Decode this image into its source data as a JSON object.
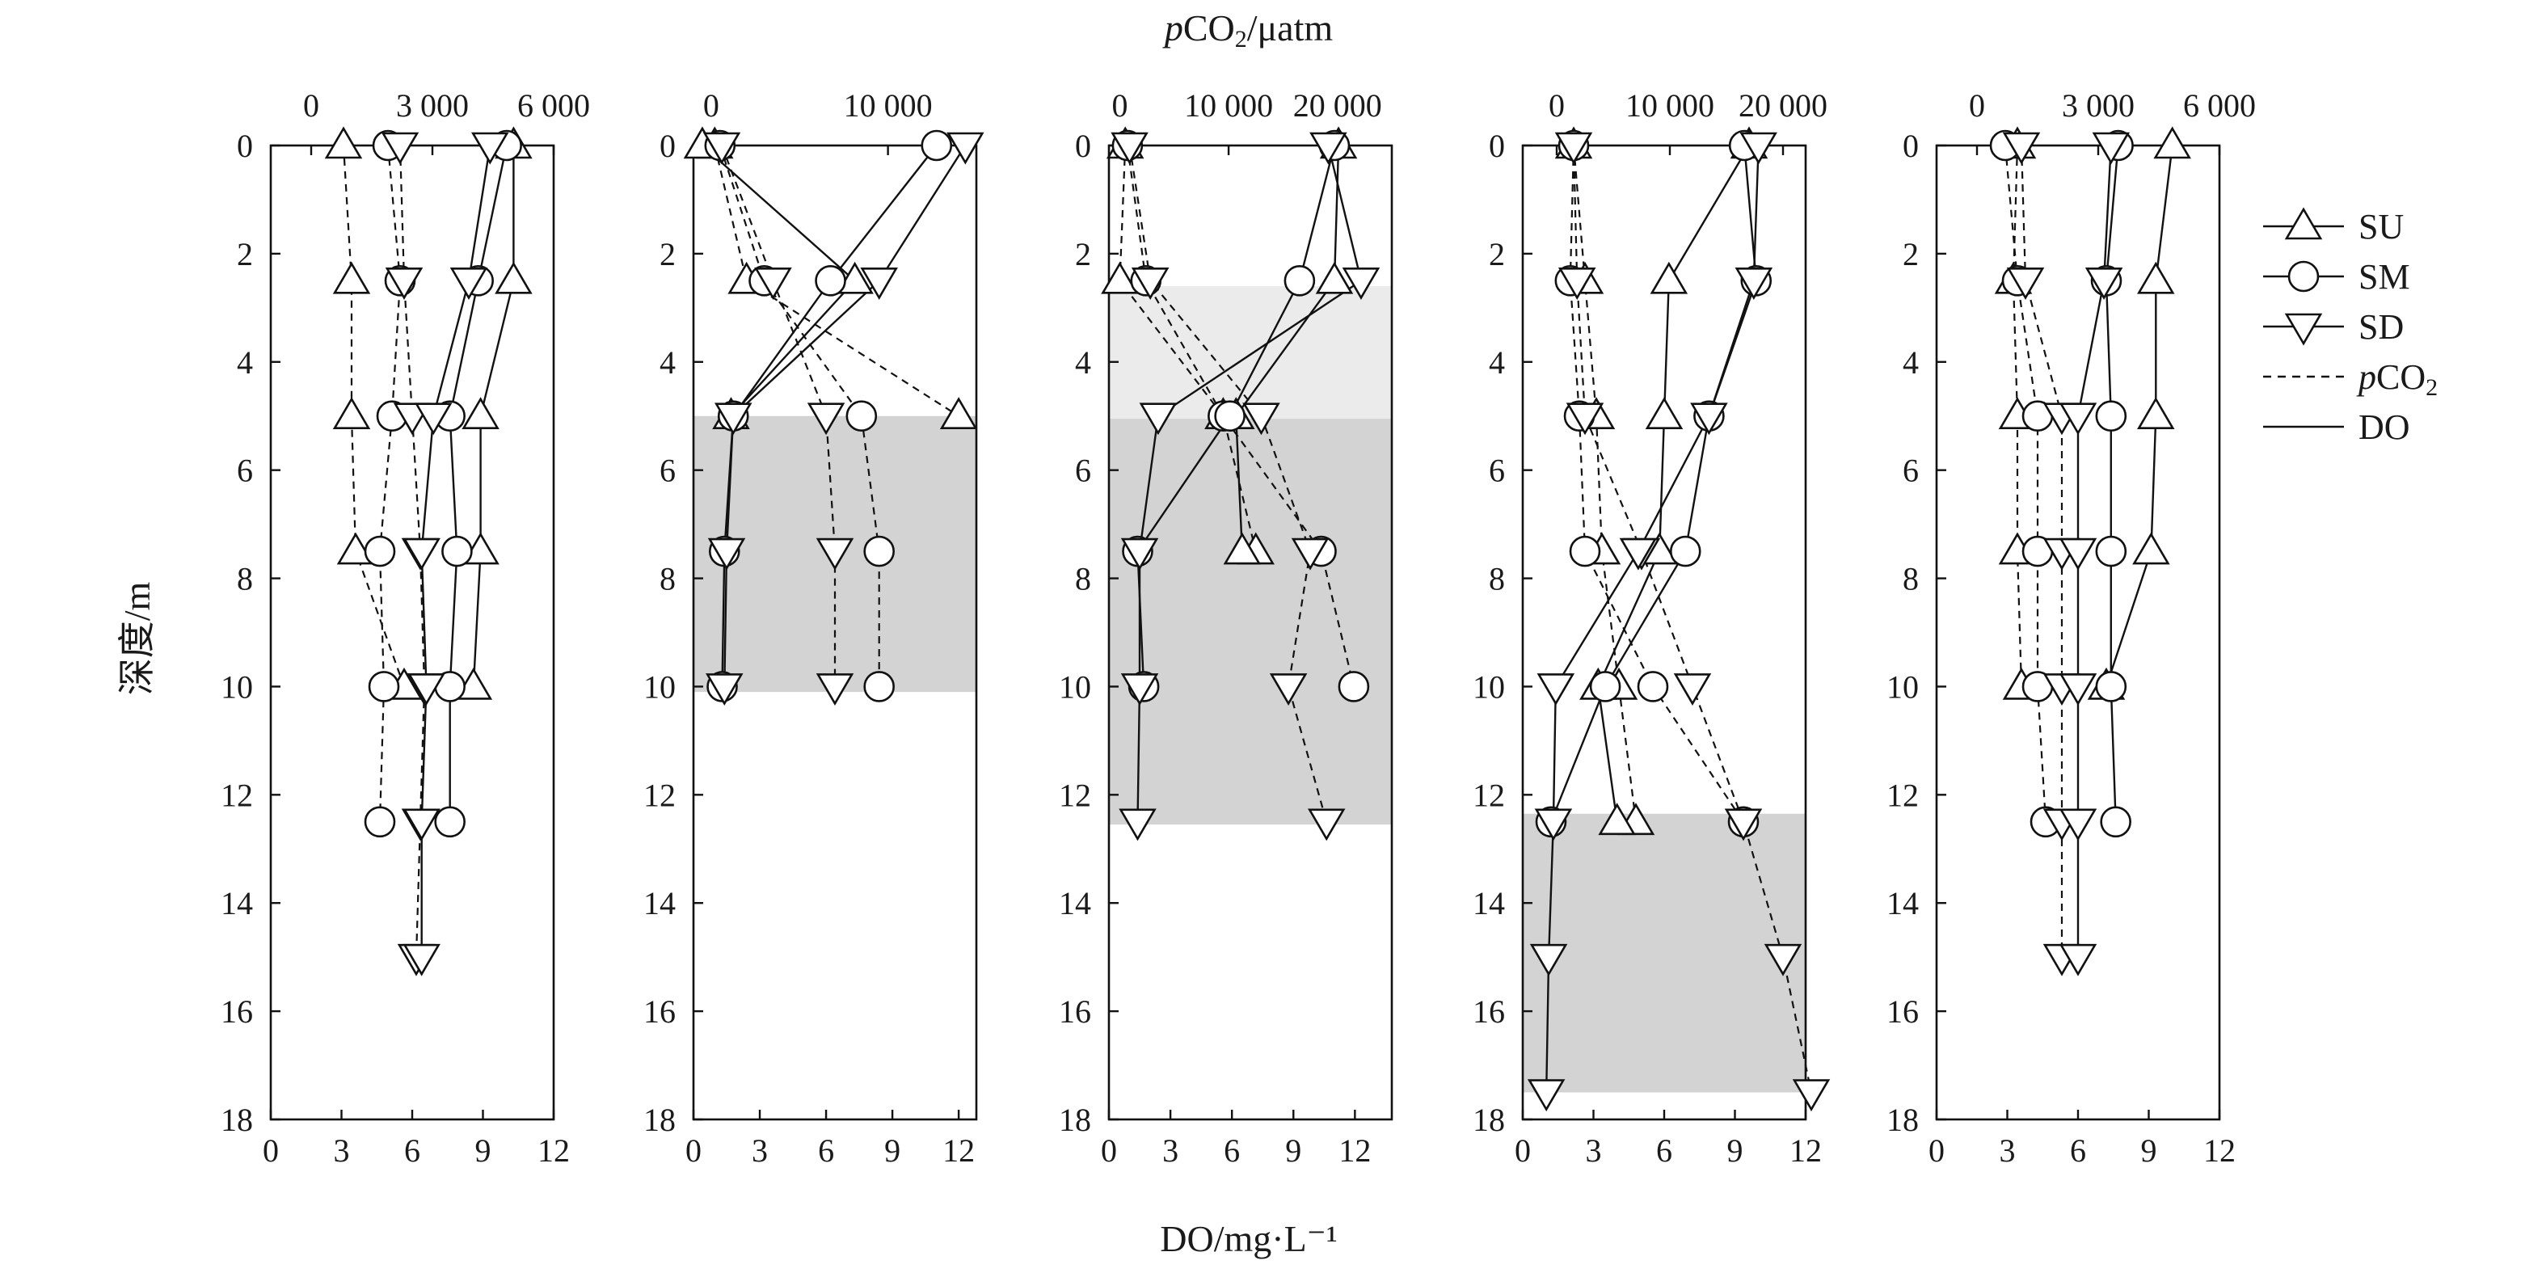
{
  "chart_data": {
    "type": "scatter",
    "axis_titles": {
      "top": [
        "p",
        "CO",
        "2",
        "/μatm"
      ],
      "bottom": "DO/mg·L⁻¹",
      "left": "深度/m"
    },
    "yaxis": {
      "range": [
        0,
        18
      ],
      "reversed": true,
      "ticks": [
        0,
        2,
        4,
        6,
        8,
        10,
        12,
        14,
        16,
        18
      ]
    },
    "legend": {
      "position": "right",
      "items": [
        {
          "key": "SU",
          "label": "SU",
          "marker": "triangle-up"
        },
        {
          "key": "SM",
          "label": "SM",
          "marker": "circle"
        },
        {
          "key": "SD",
          "label": "SD",
          "marker": "triangle-down"
        },
        {
          "key": "pco2",
          "label": [
            "p",
            "CO",
            "2"
          ],
          "line": "dashed"
        },
        {
          "key": "do",
          "label": "DO",
          "line": "solid"
        }
      ]
    },
    "panels": [
      {
        "do_range": [
          0,
          12
        ],
        "do_ticks": [
          0,
          3,
          6,
          9,
          12
        ],
        "do_tick_labels": [
          "0",
          "3",
          "6",
          "9",
          "12"
        ],
        "pco2_range": [
          -1000,
          6000
        ],
        "pco2_ticks": [
          0,
          3000,
          6000
        ],
        "pco2_tick_labels": [
          "0",
          "3 000",
          "6 000"
        ],
        "shade": [],
        "series": {
          "SU": {
            "pco2": [
              [
                0,
                800
              ],
              [
                2.5,
                1000
              ],
              [
                5,
                1000
              ],
              [
                7.5,
                1100
              ],
              [
                10,
                2300
              ]
            ],
            "do": [
              [
                0,
                10.3
              ],
              [
                2.5,
                10.3
              ],
              [
                5,
                8.9
              ],
              [
                7.5,
                8.9
              ],
              [
                10,
                8.6
              ]
            ]
          },
          "SM": {
            "pco2": [
              [
                0,
                1900
              ],
              [
                2.5,
                2200
              ],
              [
                5,
                2000
              ],
              [
                7.5,
                1700
              ],
              [
                10,
                1800
              ],
              [
                12.5,
                1700
              ]
            ],
            "do": [
              [
                0,
                10.0
              ],
              [
                2.5,
                8.8
              ],
              [
                5,
                7.6
              ],
              [
                7.5,
                7.9
              ],
              [
                10,
                7.6
              ],
              [
                12.5,
                7.6
              ]
            ]
          },
          "SD": {
            "pco2": [
              [
                0,
                2200
              ],
              [
                2.5,
                2300
              ],
              [
                5,
                2500
              ],
              [
                7.5,
                2700
              ],
              [
                10,
                2800
              ],
              [
                12.5,
                2700
              ],
              [
                15,
                2600
              ]
            ],
            "do": [
              [
                0,
                9.3
              ],
              [
                2.5,
                8.4
              ],
              [
                5,
                6.9
              ],
              [
                7.5,
                6.4
              ],
              [
                10,
                6.6
              ],
              [
                12.5,
                6.4
              ],
              [
                15,
                6.4
              ]
            ]
          }
        }
      },
      {
        "do_range": [
          0,
          12.8
        ],
        "do_ticks": [
          0,
          3,
          6,
          9,
          12
        ],
        "do_tick_labels": [
          "0",
          "3",
          "6",
          "9",
          "12"
        ],
        "pco2_range": [
          -1000,
          15000
        ],
        "pco2_ticks": [
          0,
          10000
        ],
        "pco2_tick_labels": [
          "0",
          "10 000"
        ],
        "shade": [
          [
            5,
            10.1,
            "#d3d3d3"
          ]
        ],
        "series": {
          "SU": {
            "pco2": [
              [
                0,
                200
              ],
              [
                2.5,
                2000
              ],
              [
                5,
                14000
              ]
            ],
            "do": [
              [
                0,
                0.4
              ],
              [
                2.5,
                7.3
              ],
              [
                5,
                1.7
              ]
            ]
          },
          "SM": {
            "pco2": [
              [
                0,
                500
              ],
              [
                2.5,
                3000
              ],
              [
                5,
                8500
              ],
              [
                7.5,
                9500
              ],
              [
                10,
                9500
              ]
            ],
            "do": [
              [
                0,
                11.0
              ],
              [
                2.5,
                6.2
              ],
              [
                5,
                1.8
              ],
              [
                7.5,
                1.4
              ],
              [
                10,
                1.3
              ]
            ]
          },
          "SD": {
            "pco2": [
              [
                0,
                600
              ],
              [
                2.5,
                3500
              ],
              [
                5,
                6500
              ],
              [
                7.5,
                7000
              ],
              [
                10,
                7000
              ]
            ],
            "do": [
              [
                0,
                12.3
              ],
              [
                2.5,
                8.4
              ],
              [
                5,
                1.8
              ],
              [
                7.5,
                1.5
              ],
              [
                10,
                1.4
              ]
            ]
          }
        }
      },
      {
        "do_range": [
          0,
          13.8
        ],
        "do_ticks": [
          0,
          3,
          6,
          9,
          12
        ],
        "do_tick_labels": [
          "0",
          "3",
          "6",
          "9",
          "12"
        ],
        "pco2_range": [
          -1000,
          25000
        ],
        "pco2_ticks": [
          0,
          10000,
          20000
        ],
        "pco2_tick_labels": [
          "0",
          "10 000",
          "20 000"
        ],
        "shade": [
          [
            2.6,
            5.05,
            "#ebebeb"
          ],
          [
            5.05,
            12.55,
            "#d3d3d3"
          ]
        ],
        "series": {
          "SU": {
            "pco2": [
              [
                0,
                500
              ],
              [
                2.5,
                0
              ],
              [
                5,
                9500
              ],
              [
                7.5,
                12500
              ]
            ],
            "do": [
              [
                0,
                11.2
              ],
              [
                2.5,
                11.0
              ],
              [
                5,
                6.2
              ],
              [
                7.5,
                6.5
              ]
            ]
          },
          "SM": {
            "pco2": [
              [
                0,
                700
              ],
              [
                2.5,
                2400
              ],
              [
                5,
                9500
              ],
              [
                7.5,
                18500
              ],
              [
                10,
                21500
              ]
            ],
            "do": [
              [
                0,
                11.0
              ],
              [
                2.5,
                9.3
              ],
              [
                5,
                5.9
              ],
              [
                7.5,
                1.4
              ],
              [
                10,
                1.7
              ]
            ]
          },
          "SD": {
            "pco2": [
              [
                0,
                900
              ],
              [
                2.5,
                2800
              ],
              [
                5,
                13000
              ],
              [
                7.5,
                17500
              ],
              [
                10,
                15500
              ],
              [
                12.5,
                19000
              ]
            ],
            "do": [
              [
                0,
                10.7
              ],
              [
                2.5,
                12.3
              ],
              [
                5,
                2.4
              ],
              [
                7.5,
                1.5
              ],
              [
                10,
                1.5
              ],
              [
                12.5,
                1.4
              ]
            ]
          }
        }
      },
      {
        "do_range": [
          0,
          12
        ],
        "do_ticks": [
          0,
          3,
          6,
          9,
          12
        ],
        "do_tick_labels": [
          "0",
          "3",
          "6",
          "9",
          "12"
        ],
        "pco2_range": [
          -3000,
          22000
        ],
        "pco2_ticks": [
          0,
          10000,
          20000
        ],
        "pco2_tick_labels": [
          "0",
          "10 000",
          "20 000"
        ],
        "shade": [
          [
            12.35,
            17.5,
            "#d3d3d3"
          ]
        ],
        "series": {
          "SU": {
            "pco2": [
              [
                0,
                1500
              ],
              [
                2.5,
                2500
              ],
              [
                5,
                3500
              ],
              [
                7.5,
                4000
              ],
              [
                10,
                5500
              ],
              [
                12.5,
                7000
              ]
            ],
            "do": [
              [
                0,
                9.6
              ],
              [
                2.5,
                6.2
              ],
              [
                5,
                6.0
              ],
              [
                7.5,
                5.8
              ],
              [
                10,
                3.2
              ],
              [
                12.5,
                4.0
              ]
            ]
          },
          "SM": {
            "pco2": [
              [
                0,
                1500
              ],
              [
                2.5,
                1200
              ],
              [
                5,
                2000
              ],
              [
                7.5,
                2500
              ],
              [
                10,
                8500
              ],
              [
                12.5,
                16500
              ]
            ],
            "do": [
              [
                0,
                9.4
              ],
              [
                2.5,
                9.9
              ],
              [
                5,
                7.9
              ],
              [
                7.5,
                6.9
              ],
              [
                10,
                3.5
              ],
              [
                12.5,
                1.2
              ]
            ]
          },
          "SD": {
            "pco2": [
              [
                0,
                1500
              ],
              [
                2.5,
                1800
              ],
              [
                5,
                2500
              ],
              [
                7.5,
                7500
              ],
              [
                10,
                12000
              ],
              [
                12.5,
                16500
              ],
              [
                15,
                20000
              ],
              [
                17.5,
                22500
              ]
            ],
            "do": [
              [
                0,
                10.0
              ],
              [
                2.5,
                9.8
              ],
              [
                5,
                7.9
              ],
              [
                7.5,
                4.9
              ],
              [
                10,
                1.4
              ],
              [
                12.5,
                1.3
              ],
              [
                15,
                1.1
              ],
              [
                17.5,
                1.0
              ]
            ]
          }
        }
      },
      {
        "do_range": [
          0,
          12
        ],
        "do_ticks": [
          0,
          3,
          6,
          9,
          12
        ],
        "do_tick_labels": [
          "0",
          "3",
          "6",
          "9",
          "12"
        ],
        "pco2_range": [
          -1000,
          6000
        ],
        "pco2_ticks": [
          0,
          3000,
          6000
        ],
        "pco2_tick_labels": [
          "0",
          "3 000",
          "6 000"
        ],
        "shade": [],
        "series": {
          "SU": {
            "pco2": [
              [
                0,
                1000
              ],
              [
                2.5,
                900
              ],
              [
                5,
                1000
              ],
              [
                7.5,
                1000
              ],
              [
                10,
                1100
              ]
            ],
            "do": [
              [
                0,
                10.0
              ],
              [
                2.5,
                9.3
              ],
              [
                5,
                9.3
              ],
              [
                7.5,
                9.1
              ],
              [
                10,
                7.2
              ]
            ]
          },
          "SM": {
            "pco2": [
              [
                0,
                700
              ],
              [
                2.5,
                1000
              ],
              [
                5,
                1500
              ],
              [
                7.5,
                1500
              ],
              [
                10,
                1500
              ],
              [
                12.5,
                1700
              ]
            ],
            "do": [
              [
                0,
                7.7
              ],
              [
                2.5,
                7.2
              ],
              [
                5,
                7.4
              ],
              [
                7.5,
                7.4
              ],
              [
                10,
                7.4
              ],
              [
                12.5,
                7.6
              ]
            ]
          },
          "SD": {
            "pco2": [
              [
                0,
                1100
              ],
              [
                2.5,
                1200
              ],
              [
                5,
                2100
              ],
              [
                7.5,
                2100
              ],
              [
                10,
                2100
              ],
              [
                12.5,
                2100
              ],
              [
                15,
                2100
              ]
            ],
            "do": [
              [
                0,
                7.4
              ],
              [
                2.5,
                7.1
              ],
              [
                5,
                6.0
              ],
              [
                7.5,
                6.0
              ],
              [
                10,
                6.0
              ],
              [
                12.5,
                6.0
              ],
              [
                15,
                6.0
              ]
            ]
          }
        }
      }
    ]
  }
}
